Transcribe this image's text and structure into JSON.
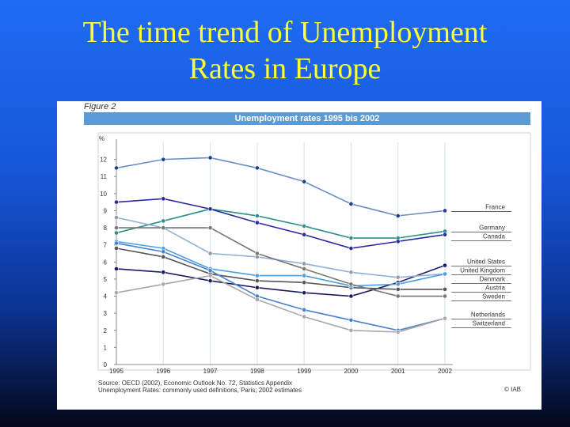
{
  "slide": {
    "title_line1": "The time trend of Unemployment",
    "title_line2": "Rates in Europe"
  },
  "figure": {
    "label": "Figure 2",
    "header": "Unemployment rates 1995 bis 2002",
    "source_line1": "Source: OECD (2002), Economic Outlook No. 72, Statistics Appendix",
    "source_line2": "Unemployment Rates: commonly used definitions, Paris; 2002 estimates",
    "copyright": "© IAB"
  },
  "chart_data": {
    "type": "line",
    "title": "Unemployment rates 1995 bis 2002",
    "ylabel": "%",
    "xlabel": "",
    "x": [
      "1995",
      "1996",
      "1997",
      "1998",
      "1999",
      "2000",
      "2001",
      "2002"
    ],
    "x_tick_labels": [
      "1995",
      "1996",
      "1997",
      "1998",
      "1999",
      "2000",
      "2001",
      "2002"
    ],
    "ylim": [
      0,
      13
    ],
    "yticks": [
      0,
      1,
      2,
      3,
      4,
      5,
      6,
      7,
      8,
      9,
      10,
      11,
      12
    ],
    "grid": "vertical",
    "legend": "right",
    "series": [
      {
        "name": "France",
        "values": [
          11.5,
          12.0,
          12.1,
          11.5,
          10.7,
          9.4,
          8.7,
          9.0
        ],
        "color": "#6a8fc8",
        "marker": "#1f3f86"
      },
      {
        "name": "Germany",
        "values": [
          7.7,
          8.4,
          9.1,
          8.7,
          8.1,
          7.4,
          7.4,
          7.8
        ],
        "color": "#2f8f8a",
        "marker": "#2f8f8a"
      },
      {
        "name": "Canada",
        "values": [
          9.5,
          9.7,
          9.1,
          8.3,
          7.6,
          6.8,
          7.2,
          7.6
        ],
        "color": "#2a2aa0",
        "marker": "#2a2aa0"
      },
      {
        "name": "United States",
        "values": [
          5.6,
          5.4,
          4.9,
          4.5,
          4.2,
          4.0,
          4.8,
          5.8
        ],
        "color": "#1a1a60",
        "marker": "#1a1a60"
      },
      {
        "name": "Austria",
        "values": [
          6.8,
          6.3,
          5.3,
          4.9,
          4.8,
          4.5,
          4.4,
          4.4
        ],
        "color": "#555555",
        "marker": "#555555"
      },
      {
        "name": "United Kingdom",
        "values": [
          8.6,
          8.0,
          6.5,
          6.3,
          5.9,
          5.4,
          5.1,
          5.3
        ],
        "color": "#8fb0d8",
        "marker": "#999999"
      },
      {
        "name": "Denmark",
        "values": [
          7.2,
          6.8,
          5.6,
          5.2,
          5.2,
          4.6,
          4.7,
          5.3
        ],
        "color": "#4f9fdc",
        "marker": "#4f9fdc"
      },
      {
        "name": "Sweden",
        "values": [
          8.0,
          8.0,
          8.0,
          6.5,
          5.6,
          4.7,
          4.0,
          4.0
        ],
        "color": "#777777",
        "marker": "#777777"
      },
      {
        "name": "Netherlands",
        "values": [
          7.1,
          6.6,
          5.5,
          4.0,
          3.2,
          2.6,
          2.0,
          2.7
        ],
        "color": "#4a7fd0",
        "marker": "#4a7fd0"
      },
      {
        "name": "Switzerland",
        "values": [
          4.2,
          4.7,
          5.2,
          3.8,
          2.8,
          2.0,
          1.9,
          2.7
        ],
        "color": "#a8a8a8",
        "marker": "#a8a8a8"
      }
    ]
  }
}
